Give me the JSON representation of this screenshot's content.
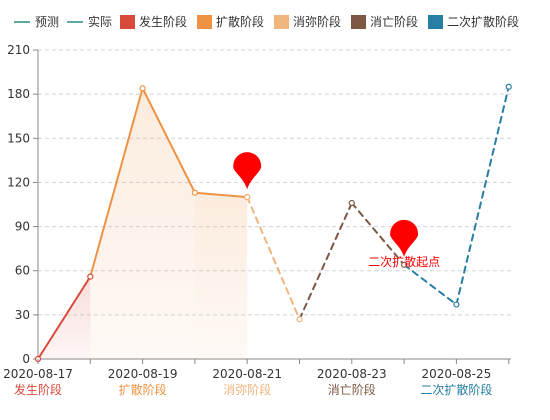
{
  "chart_data": {
    "type": "line",
    "title": "",
    "xlabel": "",
    "ylabel": "",
    "ylim": [
      0,
      210
    ],
    "y_ticks": [
      0,
      30,
      60,
      90,
      120,
      150,
      180,
      210
    ],
    "grid": true,
    "legend_position": "top",
    "x": [
      "2020-08-17",
      "2020-08-18",
      "2020-08-19",
      "2020-08-20",
      "2020-08-21",
      "2020-08-22",
      "2020-08-23",
      "2020-08-24",
      "2020-08-25",
      "2020-08-26"
    ],
    "x_tick_labels": [
      "2020-08-17",
      "2020-08-19",
      "2020-08-21",
      "2020-08-23",
      "2020-08-25"
    ],
    "series": [
      {
        "name": "预测",
        "style": "dashed",
        "values": [
          null,
          null,
          null,
          null,
          110,
          27,
          106,
          64,
          37,
          185
        ]
      },
      {
        "name": "实际",
        "style": "solid",
        "values": [
          0,
          56,
          184,
          113,
          110,
          null,
          null,
          null,
          null,
          null
        ]
      }
    ],
    "phases": [
      {
        "name": "发生阶段",
        "color": "#d9493b",
        "from": "2020-08-17",
        "to": "2020-08-18"
      },
      {
        "name": "扩散阶段",
        "color": "#ee9344",
        "from": "2020-08-18",
        "to": "2020-08-21"
      },
      {
        "name": "消弥阶段",
        "color": "#f0b47d",
        "from": "2020-08-21",
        "to": "2020-08-22"
      },
      {
        "name": "消亡阶段",
        "color": "#7c5843",
        "from": "2020-08-22",
        "to": "2020-08-24"
      },
      {
        "name": "二次扩散阶段",
        "color": "#277da3",
        "from": "2020-08-24",
        "to": "2020-08-26"
      }
    ],
    "axis_phase_labels": [
      {
        "name": "发生阶段",
        "at": "2020-08-17",
        "color": "#d9493b"
      },
      {
        "name": "扩散阶段",
        "at": "2020-08-19",
        "color": "#ee9344"
      },
      {
        "name": "消弥阶段",
        "at": "2020-08-21",
        "color": "#f0b47d"
      },
      {
        "name": "消亡阶段",
        "at": "2020-08-23",
        "color": "#7c5843"
      },
      {
        "name": "二次扩散阶段",
        "at": "2020-08-25",
        "color": "#277da3"
      }
    ],
    "markers": [
      {
        "label": "",
        "x": "2020-08-21",
        "y": 110,
        "color": "#ff0000"
      },
      {
        "label": "二次扩散起点",
        "x": "2020-08-24",
        "y": 64,
        "color": "#ff0000"
      }
    ],
    "line_color": "#2a8a84",
    "grid_color": "#d4d4d4",
    "axis_color": "#888888"
  }
}
